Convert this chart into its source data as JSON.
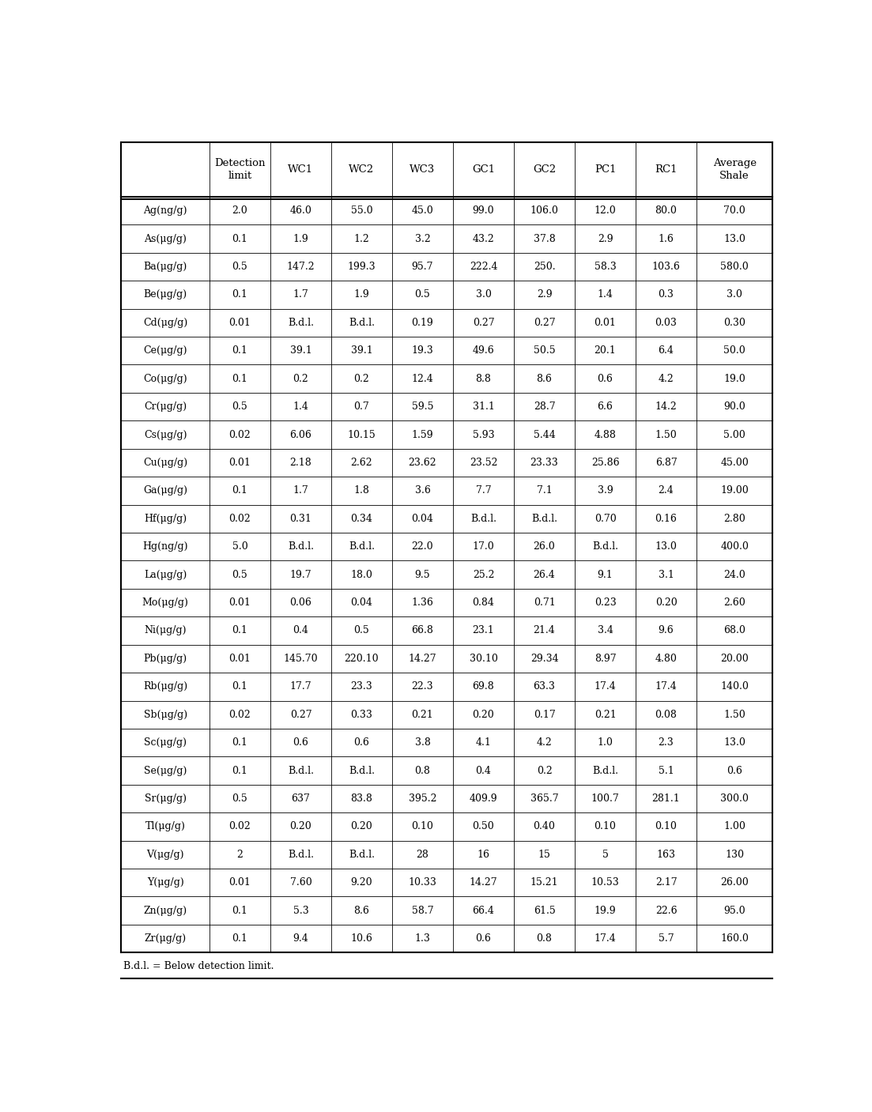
{
  "headers": [
    "",
    "Detection\nlimit",
    "WC1",
    "WC2",
    "WC3",
    "GC1",
    "GC2",
    "PC1",
    "RC1",
    "Average\nShale"
  ],
  "rows": [
    [
      "Ag(ng/g)",
      "2.0",
      "46.0",
      "55.0",
      "45.0",
      "99.0",
      "106.0",
      "12.0",
      "80.0",
      "70.0"
    ],
    [
      "As(μg/g)",
      "0.1",
      "1.9",
      "1.2",
      "3.2",
      "43.2",
      "37.8",
      "2.9",
      "1.6",
      "13.0"
    ],
    [
      "Ba(μg/g)",
      "0.5",
      "147.2",
      "199.3",
      "95.7",
      "222.4",
      "250.",
      "58.3",
      "103.6",
      "580.0"
    ],
    [
      "Be(μg/g)",
      "0.1",
      "1.7",
      "1.9",
      "0.5",
      "3.0",
      "2.9",
      "1.4",
      "0.3",
      "3.0"
    ],
    [
      "Cd(μg/g)",
      "0.01",
      "B.d.l.",
      "B.d.l.",
      "0.19",
      "0.27",
      "0.27",
      "0.01",
      "0.03",
      "0.30"
    ],
    [
      "Ce(μg/g)",
      "0.1",
      "39.1",
      "39.1",
      "19.3",
      "49.6",
      "50.5",
      "20.1",
      "6.4",
      "50.0"
    ],
    [
      "Co(μg/g)",
      "0.1",
      "0.2",
      "0.2",
      "12.4",
      "8.8",
      "8.6",
      "0.6",
      "4.2",
      "19.0"
    ],
    [
      "Cr(μg/g)",
      "0.5",
      "1.4",
      "0.7",
      "59.5",
      "31.1",
      "28.7",
      "6.6",
      "14.2",
      "90.0"
    ],
    [
      "Cs(μg/g)",
      "0.02",
      "6.06",
      "10.15",
      "1.59",
      "5.93",
      "5.44",
      "4.88",
      "1.50",
      "5.00"
    ],
    [
      "Cu(μg/g)",
      "0.01",
      "2.18",
      "2.62",
      "23.62",
      "23.52",
      "23.33",
      "25.86",
      "6.87",
      "45.00"
    ],
    [
      "Ga(μg/g)",
      "0.1",
      "1.7",
      "1.8",
      "3.6",
      "7.7",
      "7.1",
      "3.9",
      "2.4",
      "19.00"
    ],
    [
      "Hf(μg/g)",
      "0.02",
      "0.31",
      "0.34",
      "0.04",
      "B.d.l.",
      "B.d.l.",
      "0.70",
      "0.16",
      "2.80"
    ],
    [
      "Hg(ng/g)",
      "5.0",
      "B.d.l.",
      "B.d.l.",
      "22.0",
      "17.0",
      "26.0",
      "B.d.l.",
      "13.0",
      "400.0"
    ],
    [
      "La(μg/g)",
      "0.5",
      "19.7",
      "18.0",
      "9.5",
      "25.2",
      "26.4",
      "9.1",
      "3.1",
      "24.0"
    ],
    [
      "Mo(μg/g)",
      "0.01",
      "0.06",
      "0.04",
      "1.36",
      "0.84",
      "0.71",
      "0.23",
      "0.20",
      "2.60"
    ],
    [
      "Ni(μg/g)",
      "0.1",
      "0.4",
      "0.5",
      "66.8",
      "23.1",
      "21.4",
      "3.4",
      "9.6",
      "68.0"
    ],
    [
      "Pb(μg/g)",
      "0.01",
      "145.70",
      "220.10",
      "14.27",
      "30.10",
      "29.34",
      "8.97",
      "4.80",
      "20.00"
    ],
    [
      "Rb(μg/g)",
      "0.1",
      "17.7",
      "23.3",
      "22.3",
      "69.8",
      "63.3",
      "17.4",
      "17.4",
      "140.0"
    ],
    [
      "Sb(μg/g)",
      "0.02",
      "0.27",
      "0.33",
      "0.21",
      "0.20",
      "0.17",
      "0.21",
      "0.08",
      "1.50"
    ],
    [
      "Sc(μg/g)",
      "0.1",
      "0.6",
      "0.6",
      "3.8",
      "4.1",
      "4.2",
      "1.0",
      "2.3",
      "13.0"
    ],
    [
      "Se(μg/g)",
      "0.1",
      "B.d.l.",
      "B.d.l.",
      "0.8",
      "0.4",
      "0.2",
      "B.d.l.",
      "5.1",
      "0.6"
    ],
    [
      "Sr(μg/g)",
      "0.5",
      "637",
      "83.8",
      "395.2",
      "409.9",
      "365.7",
      "100.7",
      "281.1",
      "300.0"
    ],
    [
      "Tl(μg/g)",
      "0.02",
      "0.20",
      "0.20",
      "0.10",
      "0.50",
      "0.40",
      "0.10",
      "0.10",
      "1.00"
    ],
    [
      "V(μg/g)",
      "2",
      "B.d.l.",
      "B.d.l.",
      "28",
      "16",
      "15",
      "5",
      "163",
      "130"
    ],
    [
      "Y(μg/g)",
      "0.01",
      "7.60",
      "9.20",
      "10.33",
      "14.27",
      "15.21",
      "10.53",
      "2.17",
      "26.00"
    ],
    [
      "Zn(μg/g)",
      "0.1",
      "5.3",
      "8.6",
      "58.7",
      "66.4",
      "61.5",
      "19.9",
      "22.6",
      "95.0"
    ],
    [
      "Zr(μg/g)",
      "0.1",
      "9.4",
      "10.6",
      "1.3",
      "0.6",
      "0.8",
      "17.4",
      "5.7",
      "160.0"
    ]
  ],
  "footnote": "B.d.l. = Below detection limit.",
  "col_widths": [
    1.45,
    1.0,
    1.0,
    1.0,
    1.0,
    1.0,
    1.0,
    1.0,
    1.0,
    1.25
  ],
  "border_color": "#000000",
  "text_color": "#000000",
  "font_size": 9.0,
  "header_font_size": 9.5,
  "fig_width": 11.03,
  "fig_height": 14.07,
  "dpi": 100
}
